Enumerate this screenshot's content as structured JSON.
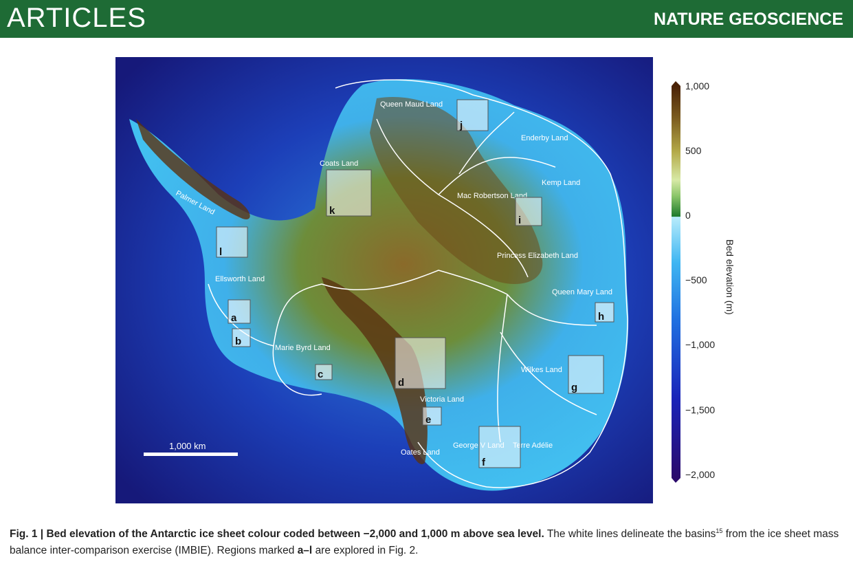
{
  "header": {
    "section": "ARTICLES",
    "journal": "NATURE GEOSCIENCE",
    "color": "#1e6b35"
  },
  "figure": {
    "map_labels": [
      "Queen Maud Land",
      "Enderby Land",
      "Coats Land",
      "Kemp Land",
      "Mac Robertson Land",
      "Palmer Land",
      "Princess Elizabeth Land",
      "Ellsworth Land",
      "Queen Mary Land",
      "Marie Byrd Land",
      "Wilkes Land",
      "Victoria Land",
      "George V Land",
      "Terre Adélie",
      "Oates Land"
    ],
    "regions": [
      "a",
      "b",
      "c",
      "d",
      "e",
      "f",
      "g",
      "h",
      "i",
      "j",
      "k",
      "l"
    ],
    "scale_bar": "1,000 km",
    "colorbar": {
      "label": "Bed elevation (m)",
      "ticks": [
        "1,000",
        "500",
        "0",
        "−500",
        "−1,000",
        "−1,500",
        "−2,000"
      ],
      "range": [
        -2000,
        1000
      ],
      "colors": [
        "#2a0a6b",
        "#1a23b8",
        "#1f6fe0",
        "#3fb6f2",
        "#b8ecfb",
        "#1d7a2c",
        "#8cc66a",
        "#d7e9a6",
        "#b3a948",
        "#7a5a1e",
        "#4a2206"
      ]
    }
  },
  "caption": {
    "label": "Fig. 1 |",
    "bold": "Bed elevation of the Antarctic ice sheet colour coded between −2,000 and 1,000 m above sea level.",
    "text1": "The white lines delineate the basins",
    "ref": "15",
    "text2": "from the ice sheet mass balance inter-comparison exercise (IMBIE). Regions marked",
    "range": "a–l",
    "text3": "are explored in Fig. 2."
  }
}
